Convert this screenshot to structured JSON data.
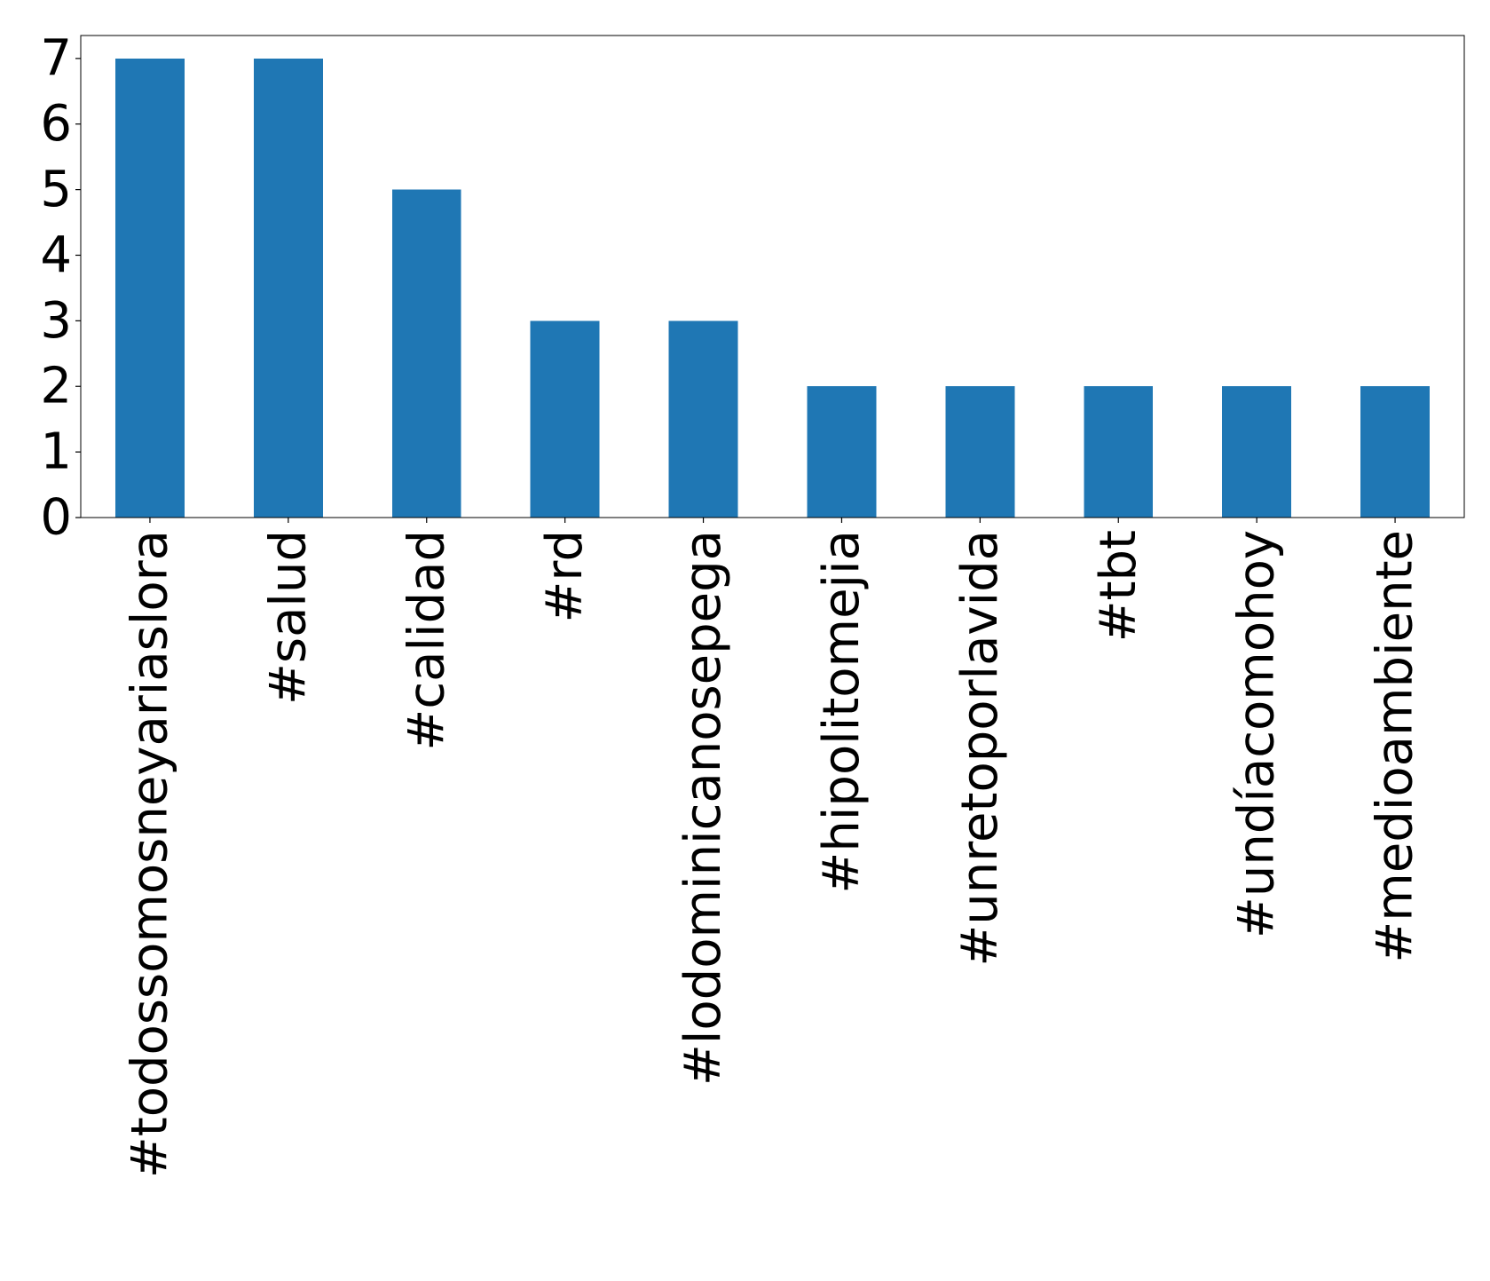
{
  "chart_data": {
    "type": "bar",
    "title": "",
    "xlabel": "",
    "ylabel": "",
    "categories": [
      "#todossomosneyariaslora",
      "#salud",
      "#calidad",
      "#rd",
      "#lodominicanosepega",
      "#hipolitomejia",
      "#unretoporlavida",
      "#tbt",
      "#undíacomohoy",
      "#medioambiente"
    ],
    "values": [
      7,
      7,
      5,
      3,
      3,
      2,
      2,
      2,
      2,
      2
    ],
    "ylim": [
      0,
      7.35
    ],
    "yticks": [
      0,
      1,
      2,
      3,
      4,
      5,
      6,
      7
    ],
    "grid": false,
    "legend": "none",
    "x_tick_rotation": "vertical",
    "bar_color": "#1f77b4"
  }
}
